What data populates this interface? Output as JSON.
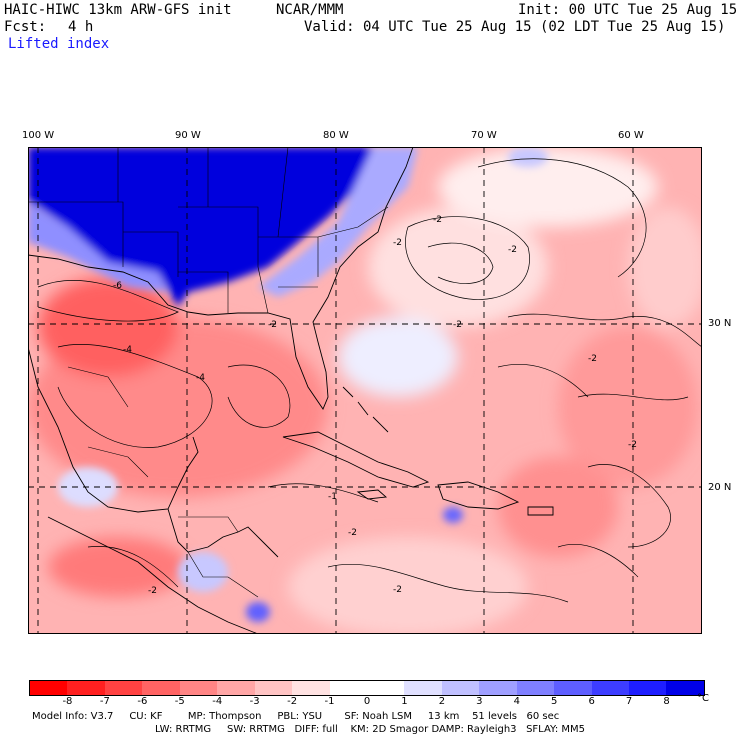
{
  "header": {
    "model": "HAIC-HIWC 13km ARW-GFS init",
    "org": "NCAR/MMM",
    "init": "Init: 00 UTC Tue 25 Aug 15",
    "fcst_label": "Fcst:",
    "fcst_value": "4 h",
    "valid": "Valid: 04 UTC Tue 25 Aug 15 (02 LDT Tue 25 Aug 15)",
    "field": "Lifted index"
  },
  "map": {
    "lon_labels": [
      "100 W",
      "90 W",
      "80 W",
      "70 W",
      "60 W"
    ],
    "lat_labels": [
      "30 N",
      "20 N"
    ],
    "contour_labels": [
      "-6",
      "-4",
      "-2",
      "-2",
      "-2",
      "-2",
      "-2",
      "-2",
      "-1",
      "-2",
      "-2",
      "-4",
      "-2",
      "-2"
    ],
    "colors": {
      "cold_max": "#0000dd",
      "warm_max": "#ff0000",
      "neutral": "#ffffff",
      "grid": "#000000"
    }
  },
  "colorbar": {
    "ticks": [
      "-8",
      "-7",
      "-6",
      "-5",
      "-4",
      "-3",
      "-2",
      "-1",
      "0",
      "1",
      "2",
      "3",
      "4",
      "5",
      "6",
      "7",
      "8"
    ],
    "unit": "°C",
    "colors": [
      "#ff0000",
      "#ff2020",
      "#ff4242",
      "#ff6363",
      "#ff8585",
      "#ffa6a6",
      "#ffc4c4",
      "#ffe2e2",
      "#ffffff",
      "#ffffff",
      "#e0e0ff",
      "#c0c0ff",
      "#9f9fff",
      "#7f7fff",
      "#5e5eff",
      "#3d3dff",
      "#1e1eff",
      "#0000e8"
    ]
  },
  "footer": {
    "line1": "Model Info: V3.7     CU: KF        MP: Thompson     PBL: YSU       SF: Noah LSM     13 km    51 levels   60 sec",
    "line2": "LW: RRTMG     SW: RRTMG   DIFF: full    KM: 2D Smagor DAMP: Rayleigh3   SFLAY: MM5"
  }
}
